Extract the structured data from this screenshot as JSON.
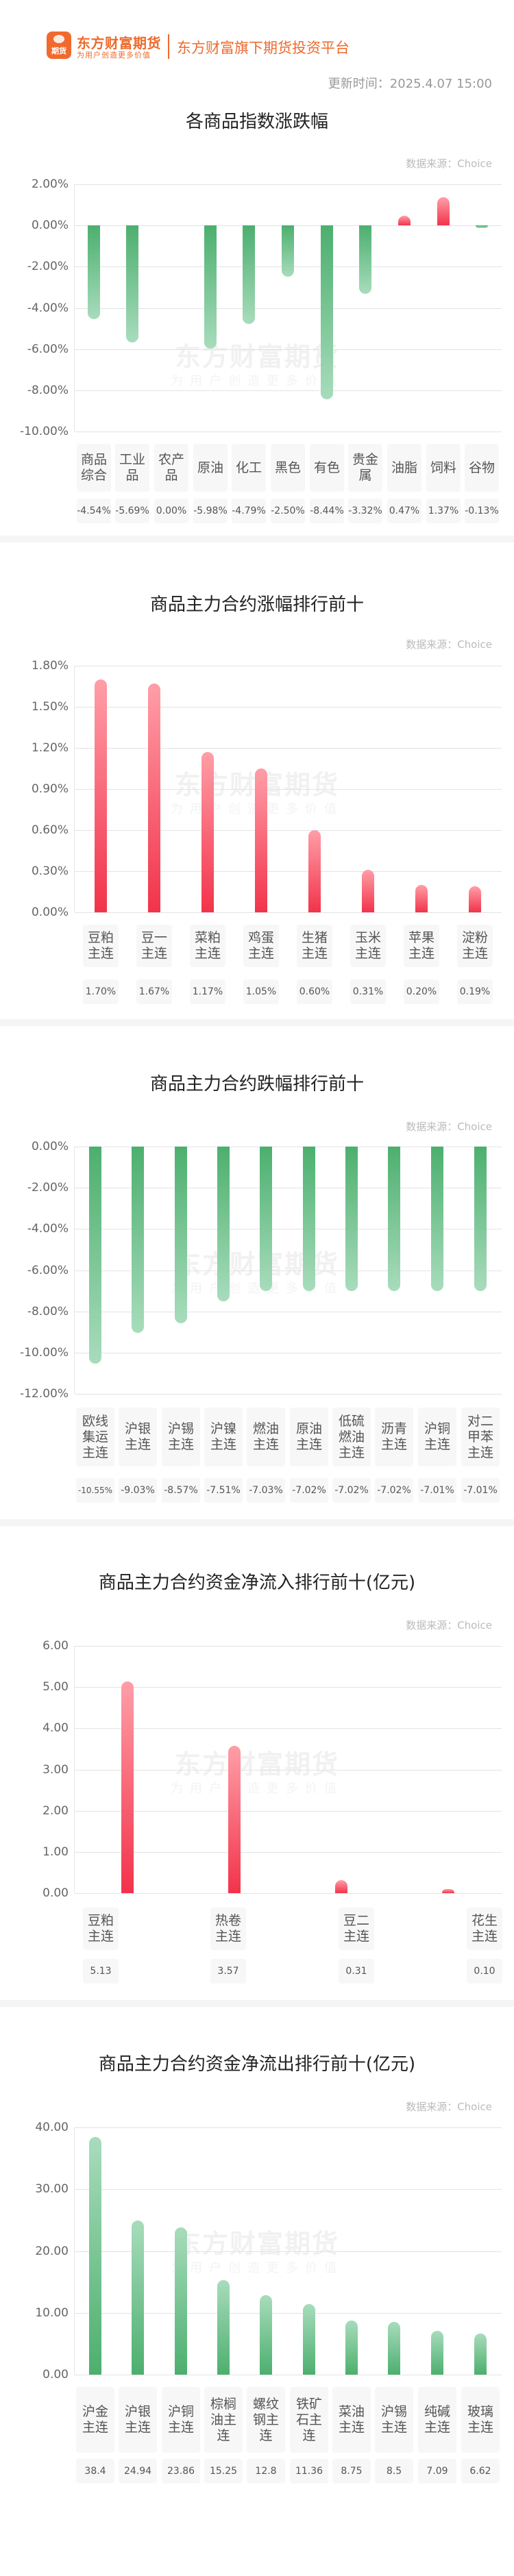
{
  "header": {
    "logo_icon_text": "期货",
    "brand_name": "东方财富期货",
    "brand_tagline": "为用户创造更多价值",
    "slogan": "东方财富旗下期货投资平台",
    "update_time": "更新时间：2025.4.07 15:00"
  },
  "watermark": {
    "main": "东方财富期货",
    "sub": "为用户创造更多价值"
  },
  "sections": [
    {
      "title": "各商品指数涨跌幅",
      "source": "数据来源：Choice"
    },
    {
      "title": "商品主力合约涨幅排行前十",
      "source": "数据来源：Choice"
    },
    {
      "title": "商品主力合约跌幅排行前十",
      "source": "数据来源：Choice"
    },
    {
      "title": "商品主力合约资金净流入排行前十(亿元)",
      "source": "数据来源：Choice"
    },
    {
      "title": "商品主力合约资金净流出排行前十(亿元)",
      "source": "数据来源：Choice"
    }
  ],
  "colors": {
    "up": "#f2334a",
    "down": "#4caf6e",
    "brand": "#ee6a2c"
  },
  "chart_data": [
    {
      "type": "bar",
      "title": "各商品指数涨跌幅",
      "categories": [
        "商品综合",
        "工业品",
        "农产品",
        "原油",
        "化工",
        "黑色",
        "有色",
        "贵金属",
        "油脂",
        "饲料",
        "谷物"
      ],
      "category_lines": [
        [
          "商品",
          "综合"
        ],
        [
          "工业",
          "品"
        ],
        [
          "农产",
          "品"
        ],
        [
          "原油"
        ],
        [
          "化工"
        ],
        [
          "黑色"
        ],
        [
          "有色"
        ],
        [
          "贵金",
          "属"
        ],
        [
          "油脂"
        ],
        [
          "饲料"
        ],
        [
          "谷物"
        ]
      ],
      "values": [
        -4.54,
        -5.69,
        0.0,
        -5.98,
        -4.79,
        -2.5,
        -8.44,
        -3.32,
        0.47,
        1.37,
        -0.13
      ],
      "value_labels": [
        "-4.54%",
        "-5.69%",
        "0.00%",
        "-5.98%",
        "-4.79%",
        "-2.50%",
        "-8.44%",
        "-3.32%",
        "0.47%",
        "1.37%",
        "-0.13%"
      ],
      "yticks": [
        "2.00%",
        "0.00%",
        "-2.00%",
        "-4.00%",
        "-6.00%",
        "-8.00%",
        "-10.00%"
      ],
      "ylim": [
        -10,
        2
      ],
      "grid": true,
      "ylabel": "",
      "xlabel": ""
    },
    {
      "type": "bar",
      "title": "商品主力合约涨幅排行前十",
      "categories": [
        "豆粕主连",
        "豆一主连",
        "菜粕主连",
        "鸡蛋主连",
        "生猪主连",
        "玉米主连",
        "苹果主连",
        "淀粉主连"
      ],
      "category_lines": [
        [
          "豆粕",
          "主连"
        ],
        [
          "豆一",
          "主连"
        ],
        [
          "菜粕",
          "主连"
        ],
        [
          "鸡蛋",
          "主连"
        ],
        [
          "生猪",
          "主连"
        ],
        [
          "玉米",
          "主连"
        ],
        [
          "苹果",
          "主连"
        ],
        [
          "淀粉",
          "主连"
        ]
      ],
      "values": [
        1.7,
        1.67,
        1.17,
        1.05,
        0.6,
        0.31,
        0.2,
        0.19
      ],
      "value_labels": [
        "1.70%",
        "1.67%",
        "1.17%",
        "1.05%",
        "0.60%",
        "0.31%",
        "0.20%",
        "0.19%"
      ],
      "yticks": [
        "1.80%",
        "1.50%",
        "1.20%",
        "0.90%",
        "0.60%",
        "0.30%",
        "0.00%"
      ],
      "ylim": [
        0,
        1.8
      ],
      "grid": true
    },
    {
      "type": "bar",
      "title": "商品主力合约跌幅排行前十",
      "categories": [
        "欧线集运主连",
        "沪银主连",
        "沪锡主连",
        "沪镍主连",
        "燃油主连",
        "原油主连",
        "低硫燃油主连",
        "沥青主连",
        "沪铜主连",
        "对二甲苯主连"
      ],
      "category_lines": [
        [
          "欧线",
          "集运",
          "主连"
        ],
        [
          "沪银",
          "主连"
        ],
        [
          "沪锡",
          "主连"
        ],
        [
          "沪镍",
          "主连"
        ],
        [
          "燃油",
          "主连"
        ],
        [
          "原油",
          "主连"
        ],
        [
          "低硫",
          "燃油",
          "主连"
        ],
        [
          "沥青",
          "主连"
        ],
        [
          "沪铜",
          "主连"
        ],
        [
          "对二",
          "甲苯",
          "主连"
        ]
      ],
      "values": [
        -10.55,
        -9.03,
        -8.57,
        -7.51,
        -7.03,
        -7.02,
        -7.02,
        -7.02,
        -7.01,
        -7.01
      ],
      "value_labels": [
        "-10.55%",
        "-9.03%",
        "-8.57%",
        "-7.51%",
        "-7.03%",
        "-7.02%",
        "-7.02%",
        "-7.02%",
        "-7.01%",
        "-7.01%"
      ],
      "yticks": [
        "0.00%",
        "-2.00%",
        "-4.00%",
        "-6.00%",
        "-8.00%",
        "-10.00%",
        "-12.00%"
      ],
      "ylim": [
        -12,
        0
      ],
      "grid": true
    },
    {
      "type": "bar",
      "title": "商品主力合约资金净流入排行前十(亿元)",
      "categories": [
        "豆粕主连",
        "热卷主连",
        "豆二主连",
        "花生主连"
      ],
      "category_lines": [
        [
          "豆粕",
          "主连"
        ],
        [
          "热卷",
          "主连"
        ],
        [
          "豆二",
          "主连"
        ],
        [
          "花生",
          "主连"
        ]
      ],
      "values": [
        5.13,
        3.57,
        0.31,
        0.1
      ],
      "value_labels": [
        "5.13",
        "3.57",
        "0.31",
        "0.10"
      ],
      "yticks": [
        "6.00",
        "5.00",
        "4.00",
        "3.00",
        "2.00",
        "1.00",
        "0.00"
      ],
      "ylim": [
        0,
        6
      ],
      "grid": true,
      "ylabel": "亿元"
    },
    {
      "type": "bar",
      "title": "商品主力合约资金净流出排行前十(亿元)",
      "categories": [
        "沪金主连",
        "沪银主连",
        "沪铜主连",
        "棕榈油主连",
        "螺纹钢主连",
        "铁矿石主连",
        "菜油主连",
        "沪锡主连",
        "纯碱主连",
        "玻璃主连"
      ],
      "category_lines": [
        [
          "沪金",
          "主连"
        ],
        [
          "沪银",
          "主连"
        ],
        [
          "沪铜",
          "主连"
        ],
        [
          "棕榈",
          "油主",
          "连"
        ],
        [
          "螺纹",
          "钢主",
          "连"
        ],
        [
          "铁矿",
          "石主",
          "连"
        ],
        [
          "菜油",
          "主连"
        ],
        [
          "沪锡",
          "主连"
        ],
        [
          "纯碱",
          "主连"
        ],
        [
          "玻璃",
          "主连"
        ]
      ],
      "values": [
        38.4,
        24.94,
        23.86,
        15.25,
        12.8,
        11.36,
        8.75,
        8.5,
        7.09,
        6.62
      ],
      "value_labels": [
        "38.4",
        "24.94",
        "23.86",
        "15.25",
        "12.8",
        "11.36",
        "8.75",
        "8.5",
        "7.09",
        "6.62"
      ],
      "yticks": [
        "40.00",
        "30.00",
        "20.00",
        "10.00",
        "0.00"
      ],
      "ylim": [
        0,
        40
      ],
      "grid": true,
      "ylabel": "亿元"
    }
  ]
}
